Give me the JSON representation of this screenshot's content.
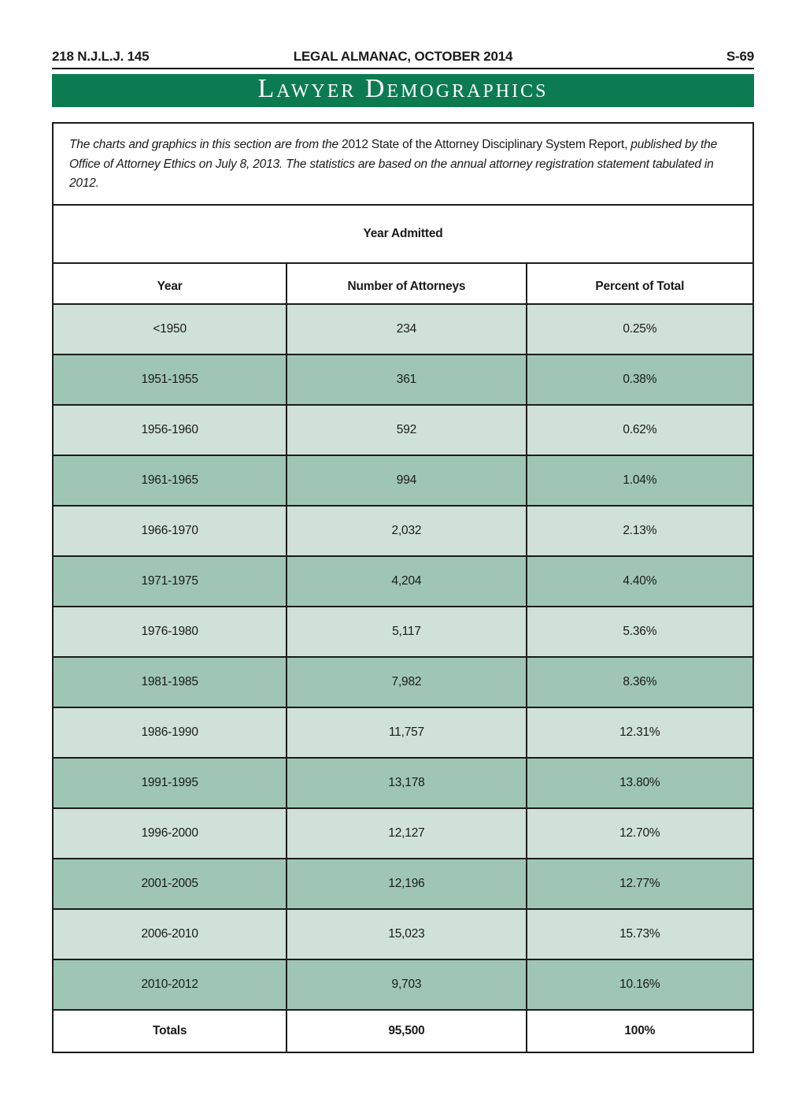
{
  "page_header": {
    "left": "218 N.J.L.J. 145",
    "center": "LEGAL ALMANAC, OCTOBER 2014",
    "right": "S-69"
  },
  "banner": {
    "title": "Lawyer Demographics"
  },
  "intro": {
    "segments": [
      {
        "text": "The charts and graphics in this section are from the ",
        "style": "italic"
      },
      {
        "text": "2012 State of the Attorney Disciplinary System Report,",
        "style": "roman"
      },
      {
        "text": " published by the Office of Attorney Ethics on July 8, 2013. The statistics are based on the annual attorney registration statement tabulated in 2012.",
        "style": "italic"
      }
    ]
  },
  "table": {
    "title": "Year Admitted",
    "columns": [
      "Year",
      "Number of Attorneys",
      "Percent of Total"
    ],
    "rows": [
      {
        "year": "<1950",
        "count": "234",
        "percent": "0.25%"
      },
      {
        "year": "1951-1955",
        "count": "361",
        "percent": "0.38%"
      },
      {
        "year": "1956-1960",
        "count": "592",
        "percent": "0.62%"
      },
      {
        "year": "1961-1965",
        "count": "994",
        "percent": "1.04%"
      },
      {
        "year": "1966-1970",
        "count": "2,032",
        "percent": "2.13%"
      },
      {
        "year": "1971-1975",
        "count": "4,204",
        "percent": "4.40%"
      },
      {
        "year": "1976-1980",
        "count": "5,117",
        "percent": "5.36%"
      },
      {
        "year": "1981-1985",
        "count": "7,982",
        "percent": "8.36%"
      },
      {
        "year": "1986-1990",
        "count": "11,757",
        "percent": "12.31%"
      },
      {
        "year": "1991-1995",
        "count": "13,178",
        "percent": "13.80%"
      },
      {
        "year": "1996-2000",
        "count": "12,127",
        "percent": "12.70%"
      },
      {
        "year": "2001-2005",
        "count": "12,196",
        "percent": "12.77%"
      },
      {
        "year": "2006-2010",
        "count": "15,023",
        "percent": "15.73%"
      },
      {
        "year": "2010-2012",
        "count": "9,703",
        "percent": "10.16%"
      }
    ],
    "totals": {
      "label": "Totals",
      "count": "95,500",
      "percent": "100%"
    }
  },
  "chart_data": {
    "type": "table",
    "title": "Year Admitted",
    "categories": [
      "<1950",
      "1951-1955",
      "1956-1960",
      "1961-1965",
      "1966-1970",
      "1971-1975",
      "1976-1980",
      "1981-1985",
      "1986-1990",
      "1991-1995",
      "1996-2000",
      "2001-2005",
      "2006-2010",
      "2010-2012"
    ],
    "series": [
      {
        "name": "Number of Attorneys",
        "values": [
          234,
          361,
          592,
          994,
          2032,
          4204,
          5117,
          7982,
          11757,
          13178,
          12127,
          12196,
          15023,
          9703
        ]
      },
      {
        "name": "Percent of Total",
        "values": [
          0.25,
          0.38,
          0.62,
          1.04,
          2.13,
          4.4,
          5.36,
          8.36,
          12.31,
          13.8,
          12.7,
          12.77,
          15.73,
          10.16
        ]
      }
    ],
    "totals": {
      "Number of Attorneys": 95500,
      "Percent of Total": 100
    }
  },
  "colors": {
    "banner_green": "#0c7b52",
    "row_light": "#cfe1d9",
    "row_dark": "#9fc6b4",
    "grid_line": "#1c1c1c"
  }
}
